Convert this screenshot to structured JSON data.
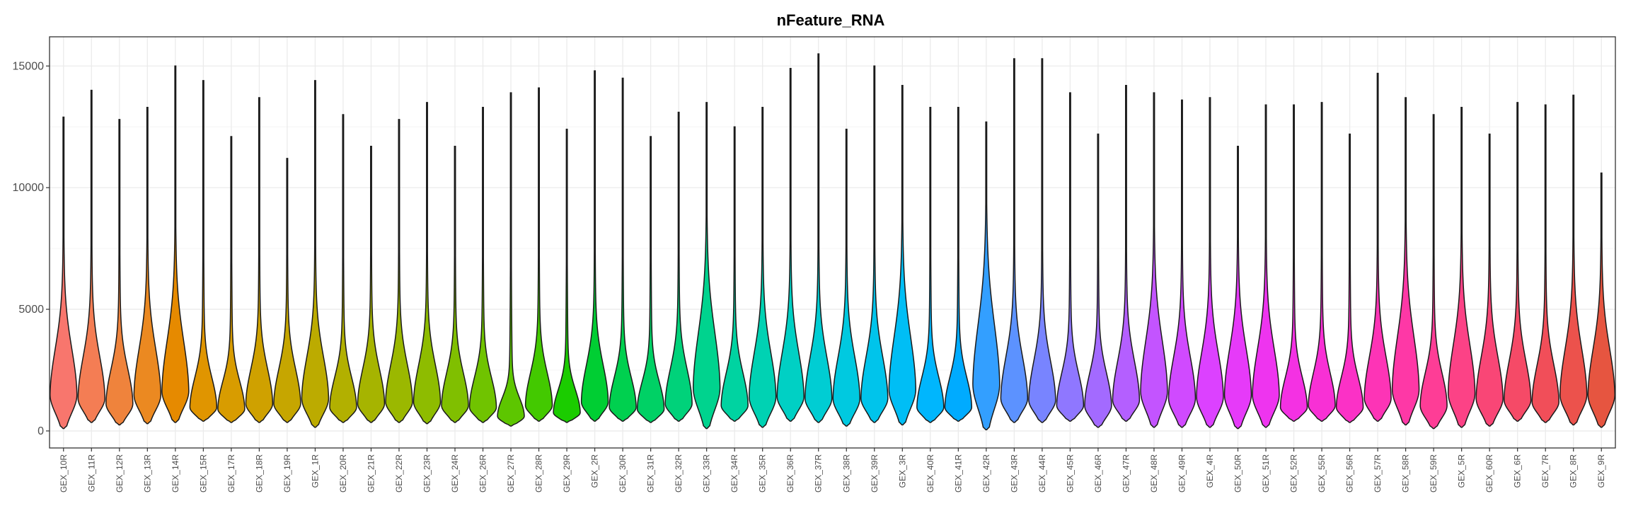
{
  "chart_data": {
    "type": "violin",
    "title": "nFeature_RNA",
    "xlabel": "",
    "ylabel": "",
    "ylim": [
      -700,
      16200
    ],
    "yticks": [
      0,
      5000,
      10000,
      15000
    ],
    "ytick_labels": [
      "0",
      "5000",
      "10000",
      "15000"
    ],
    "grid": true,
    "legend": "none",
    "categories": [
      "GEX_10R",
      "GEX_11R",
      "GEX_12R",
      "GEX_13R",
      "GEX_14R",
      "GEX_15R",
      "GEX_17R",
      "GEX_18R",
      "GEX_19R",
      "GEX_1R",
      "GEX_20R",
      "GEX_21R",
      "GEX_22R",
      "GEX_23R",
      "GEX_24R",
      "GEX_26R",
      "GEX_27R",
      "GEX_28R",
      "GEX_29R",
      "GEX_2R",
      "GEX_30R",
      "GEX_31R",
      "GEX_32R",
      "GEX_33R",
      "GEX_34R",
      "GEX_35R",
      "GEX_36R",
      "GEX_37R",
      "GEX_38R",
      "GEX_39R",
      "GEX_3R",
      "GEX_40R",
      "GEX_41R",
      "GEX_42R",
      "GEX_43R",
      "GEX_44R",
      "GEX_45R",
      "GEX_46R",
      "GEX_47R",
      "GEX_48R",
      "GEX_49R",
      "GEX_4R",
      "GEX_50R",
      "GEX_51R",
      "GEX_52R",
      "GEX_55R",
      "GEX_56R",
      "GEX_57R",
      "GEX_58R",
      "GEX_59R",
      "GEX_5R",
      "GEX_60R",
      "GEX_6R",
      "GEX_7R",
      "GEX_8R",
      "GEX_9R"
    ],
    "min": [
      100,
      350,
      250,
      300,
      350,
      400,
      350,
      350,
      350,
      150,
      350,
      350,
      350,
      300,
      350,
      350,
      200,
      400,
      350,
      400,
      400,
      350,
      400,
      100,
      400,
      150,
      400,
      350,
      200,
      350,
      250,
      350,
      400,
      50,
      350,
      350,
      400,
      150,
      400,
      150,
      150,
      150,
      100,
      150,
      400,
      400,
      350,
      400,
      250,
      100,
      150,
      200,
      400,
      350,
      250,
      150
    ],
    "max": [
      12900,
      14000,
      12800,
      13300,
      15000,
      14400,
      12100,
      13700,
      11200,
      14400,
      13000,
      11700,
      12800,
      13500,
      11700,
      13300,
      13900,
      14100,
      12400,
      14800,
      14500,
      12100,
      13100,
      13500,
      12500,
      13300,
      14900,
      15500,
      12400,
      15000,
      14200,
      13300,
      13300,
      12700,
      15300,
      15300,
      13900,
      12200,
      14200,
      13900,
      13600,
      13700,
      11700,
      13400,
      13400,
      13500,
      12200,
      14700,
      13700,
      13000,
      13300,
      12200,
      13500,
      13400,
      13800,
      10600
    ],
    "median": [
      2000,
      1800,
      1500,
      2000,
      2200,
      1300,
      1200,
      1500,
      1500,
      1800,
      1300,
      1500,
      1600,
      1600,
      1400,
      1300,
      800,
      1400,
      1000,
      1600,
      1300,
      1200,
      1500,
      2400,
      1400,
      1900,
      1900,
      1800,
      1800,
      1800,
      2300,
      1300,
      1300,
      2600,
      1800,
      1700,
      1400,
      1400,
      1700,
      2200,
      1800,
      1900,
      2000,
      2000,
      1300,
      1400,
      1300,
      1800,
      2300,
      1400,
      2100,
      1800,
      1700,
      1600,
      2000,
      2000
    ],
    "colors": [
      "#F8766D",
      "#F47D54",
      "#EF833C",
      "#EB8921",
      "#E68A00",
      "#E09500",
      "#D89C00",
      "#CFA100",
      "#C6A600",
      "#BCAB00",
      "#B2B000",
      "#A6B400",
      "#9BB800",
      "#8EBC00",
      "#80BF00",
      "#70C300",
      "#5DC600",
      "#43C900",
      "#1BCC00",
      "#00CE33",
      "#00D04F",
      "#00D165",
      "#00D27A",
      "#00D38E",
      "#00D3A1",
      "#00D2B3",
      "#00D0C4",
      "#00CDD3",
      "#00C9E0",
      "#00C4EB",
      "#00BEF5",
      "#00B6FD",
      "#00ABFF",
      "#339FFF",
      "#5C92FF",
      "#7884FF",
      "#8F77FF",
      "#A36AFF",
      "#B45FFF",
      "#C354FF",
      "#D04AFF",
      "#DC41FF",
      "#E63AF9",
      "#EE34EF",
      "#F431E3",
      "#F830D5",
      "#FB31C6",
      "#FD34B6",
      "#FE38A6",
      "#FE3D96",
      "#FC4286",
      "#F94676",
      "#F54A67",
      "#F14E59",
      "#EC524C",
      "#E65540"
    ]
  }
}
